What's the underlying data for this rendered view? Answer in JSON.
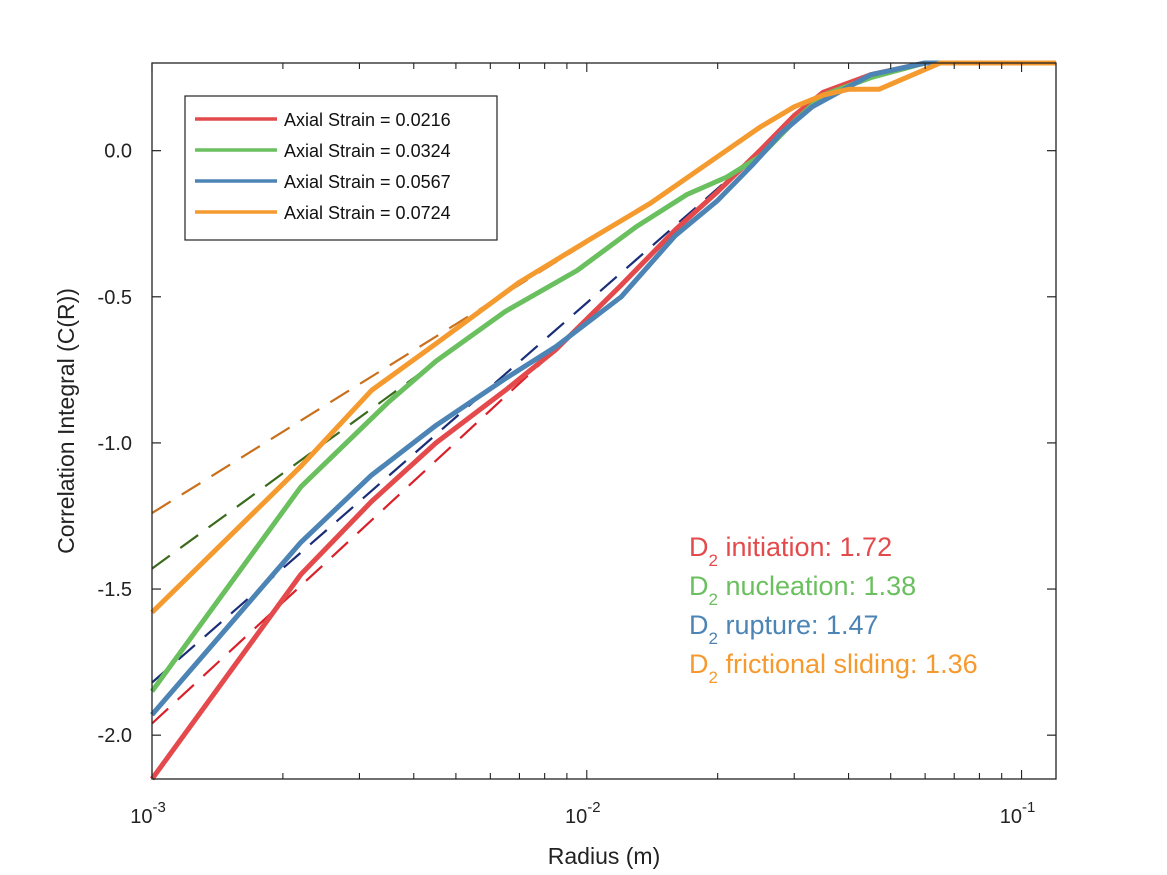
{
  "chart_data": {
    "type": "line",
    "xscale": "log",
    "xlim": [
      0.001,
      0.12
    ],
    "ylim": [
      -2.15,
      0.3
    ],
    "xlabel": "Radius (m)",
    "ylabel": "Correlation Integral (C(R))",
    "x_ticks": [
      {
        "value": 0.001,
        "base": "10",
        "exp": "-3"
      },
      {
        "value": 0.01,
        "base": "10",
        "exp": "-2"
      },
      {
        "value": 0.1,
        "base": "10",
        "exp": "-1"
      }
    ],
    "y_ticks": [
      {
        "value": 0.0,
        "label": "0.0"
      },
      {
        "value": -0.5,
        "label": "-0.5"
      },
      {
        "value": -1.0,
        "label": "-1.0"
      },
      {
        "value": -1.5,
        "label": "-1.5"
      },
      {
        "value": -2.0,
        "label": "-2.0"
      }
    ],
    "grid": false,
    "legend_position": "top-left",
    "series": [
      {
        "name": "Axial Strain = 0.0216",
        "color": "#e44a4c",
        "x": [
          0.001,
          0.0022,
          0.0032,
          0.0045,
          0.0065,
          0.0085,
          0.012,
          0.016,
          0.02,
          0.025,
          0.03,
          0.035,
          0.045,
          0.06,
          0.12
        ],
        "y": [
          -2.15,
          -1.45,
          -1.2,
          -1.0,
          -0.82,
          -0.68,
          -0.46,
          -0.27,
          -0.14,
          0.0,
          0.12,
          0.2,
          0.26,
          0.3,
          0.3
        ]
      },
      {
        "name": "Axial Strain = 0.0324",
        "color": "#6abf5e",
        "x": [
          0.001,
          0.0022,
          0.0035,
          0.0045,
          0.0065,
          0.0095,
          0.013,
          0.017,
          0.021,
          0.025,
          0.03,
          0.035,
          0.045,
          0.06,
          0.12
        ],
        "y": [
          -1.85,
          -1.15,
          -0.86,
          -0.72,
          -0.55,
          -0.41,
          -0.26,
          -0.15,
          -0.09,
          -0.02,
          0.1,
          0.19,
          0.25,
          0.3,
          0.3
        ]
      },
      {
        "name": "Axial Strain = 0.0567",
        "color": "#4c84b5",
        "x": [
          0.001,
          0.0022,
          0.0032,
          0.0045,
          0.0065,
          0.0085,
          0.012,
          0.016,
          0.02,
          0.024,
          0.028,
          0.033,
          0.045,
          0.06,
          0.12
        ],
        "y": [
          -1.93,
          -1.34,
          -1.11,
          -0.94,
          -0.78,
          -0.67,
          -0.5,
          -0.29,
          -0.17,
          -0.05,
          0.06,
          0.15,
          0.26,
          0.3,
          0.3
        ]
      },
      {
        "name": "Axial Strain = 0.0724",
        "color": "#f59a2f",
        "x": [
          0.001,
          0.0022,
          0.0032,
          0.0045,
          0.007,
          0.01,
          0.014,
          0.02,
          0.025,
          0.03,
          0.035,
          0.04,
          0.047,
          0.065,
          0.12
        ],
        "y": [
          -1.58,
          -1.08,
          -0.82,
          -0.66,
          -0.45,
          -0.31,
          -0.18,
          -0.02,
          0.08,
          0.15,
          0.19,
          0.21,
          0.21,
          0.3,
          0.3
        ]
      }
    ],
    "fit_lines": [
      {
        "color": "#d9202a",
        "x": [
          0.001,
          0.0085
        ],
        "y": [
          -1.96,
          -0.68
        ]
      },
      {
        "color": "#3a6a1c",
        "x": [
          0.001,
          0.0065
        ],
        "y": [
          -1.43,
          -0.55
        ]
      },
      {
        "color": "#1a2d78",
        "x": [
          0.001,
          0.034
        ],
        "y": [
          -1.82,
          0.17
        ]
      },
      {
        "color": "#c9701c",
        "x": [
          0.001,
          0.014
        ],
        "y": [
          -1.24,
          -0.18
        ]
      }
    ],
    "annotations": [
      {
        "prefix": "D",
        "sub": "2",
        "text": " initiation: 1.72",
        "color": "#e44a4c"
      },
      {
        "prefix": "D",
        "sub": "2",
        "text": " nucleation: 1.38",
        "color": "#6abf5e"
      },
      {
        "prefix": "D",
        "sub": "2",
        "text": " rupture: 1.47",
        "color": "#4c84b5"
      },
      {
        "prefix": "D",
        "sub": "2",
        "text": " frictional sliding: 1.36",
        "color": "#f59a2f"
      }
    ]
  }
}
